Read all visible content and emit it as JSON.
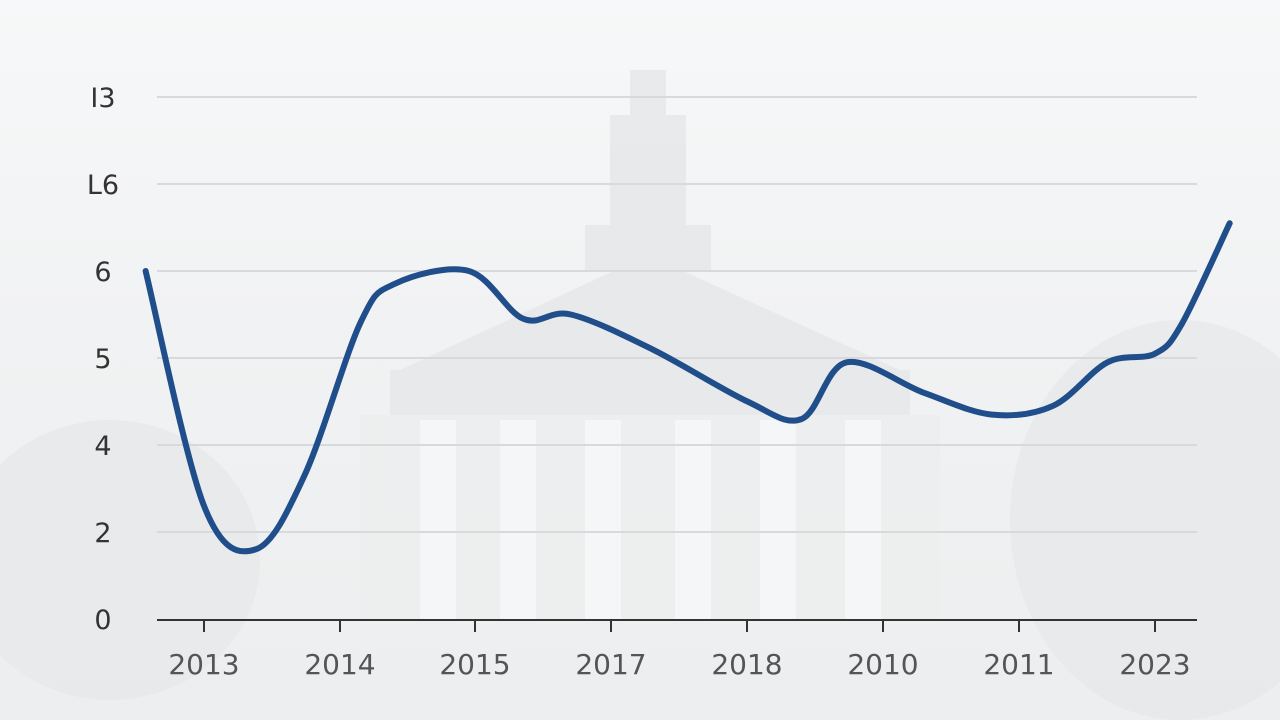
{
  "chart_data": {
    "type": "line",
    "title": "",
    "xlabel": "",
    "ylabel": "",
    "y_tick_labels": [
      "0",
      "2",
      "4",
      "5",
      "6",
      "L6",
      "I3"
    ],
    "x_tick_labels": [
      "2013",
      "2014",
      "2015",
      "2017",
      "2018",
      "2010",
      "2011",
      "2023"
    ],
    "grid": true,
    "series": [
      {
        "color": "#1f4e8a",
        "points": [
          {
            "x": 2012.57,
            "y": 6.0
          },
          {
            "x": 2013.0,
            "y": 2.6
          },
          {
            "x": 2013.38,
            "y": 1.6
          },
          {
            "x": 2013.74,
            "y": 3.3
          },
          {
            "x": 2014.15,
            "y": 5.4
          },
          {
            "x": 2014.4,
            "y": 5.85
          },
          {
            "x": 2014.95,
            "y": 6.0
          },
          {
            "x": 2015.35,
            "y": 5.45
          },
          {
            "x": 2015.7,
            "y": 5.5
          },
          {
            "x": 2016.3,
            "y": 5.1
          },
          {
            "x": 2017.0,
            "y": 4.5
          },
          {
            "x": 2017.4,
            "y": 4.3
          },
          {
            "x": 2017.73,
            "y": 4.95
          },
          {
            "x": 2018.3,
            "y": 4.6
          },
          {
            "x": 2018.8,
            "y": 4.35
          },
          {
            "x": 2019.25,
            "y": 4.45
          },
          {
            "x": 2019.65,
            "y": 4.95
          },
          {
            "x": 2020.0,
            "y": 5.05
          },
          {
            "x": 2020.2,
            "y": 5.4
          },
          {
            "x": 2020.55,
            "y": 6.55
          }
        ]
      }
    ]
  },
  "colors": {
    "line": "#1f4e8a",
    "grid": "#d7d9db",
    "axis": "#333333"
  }
}
